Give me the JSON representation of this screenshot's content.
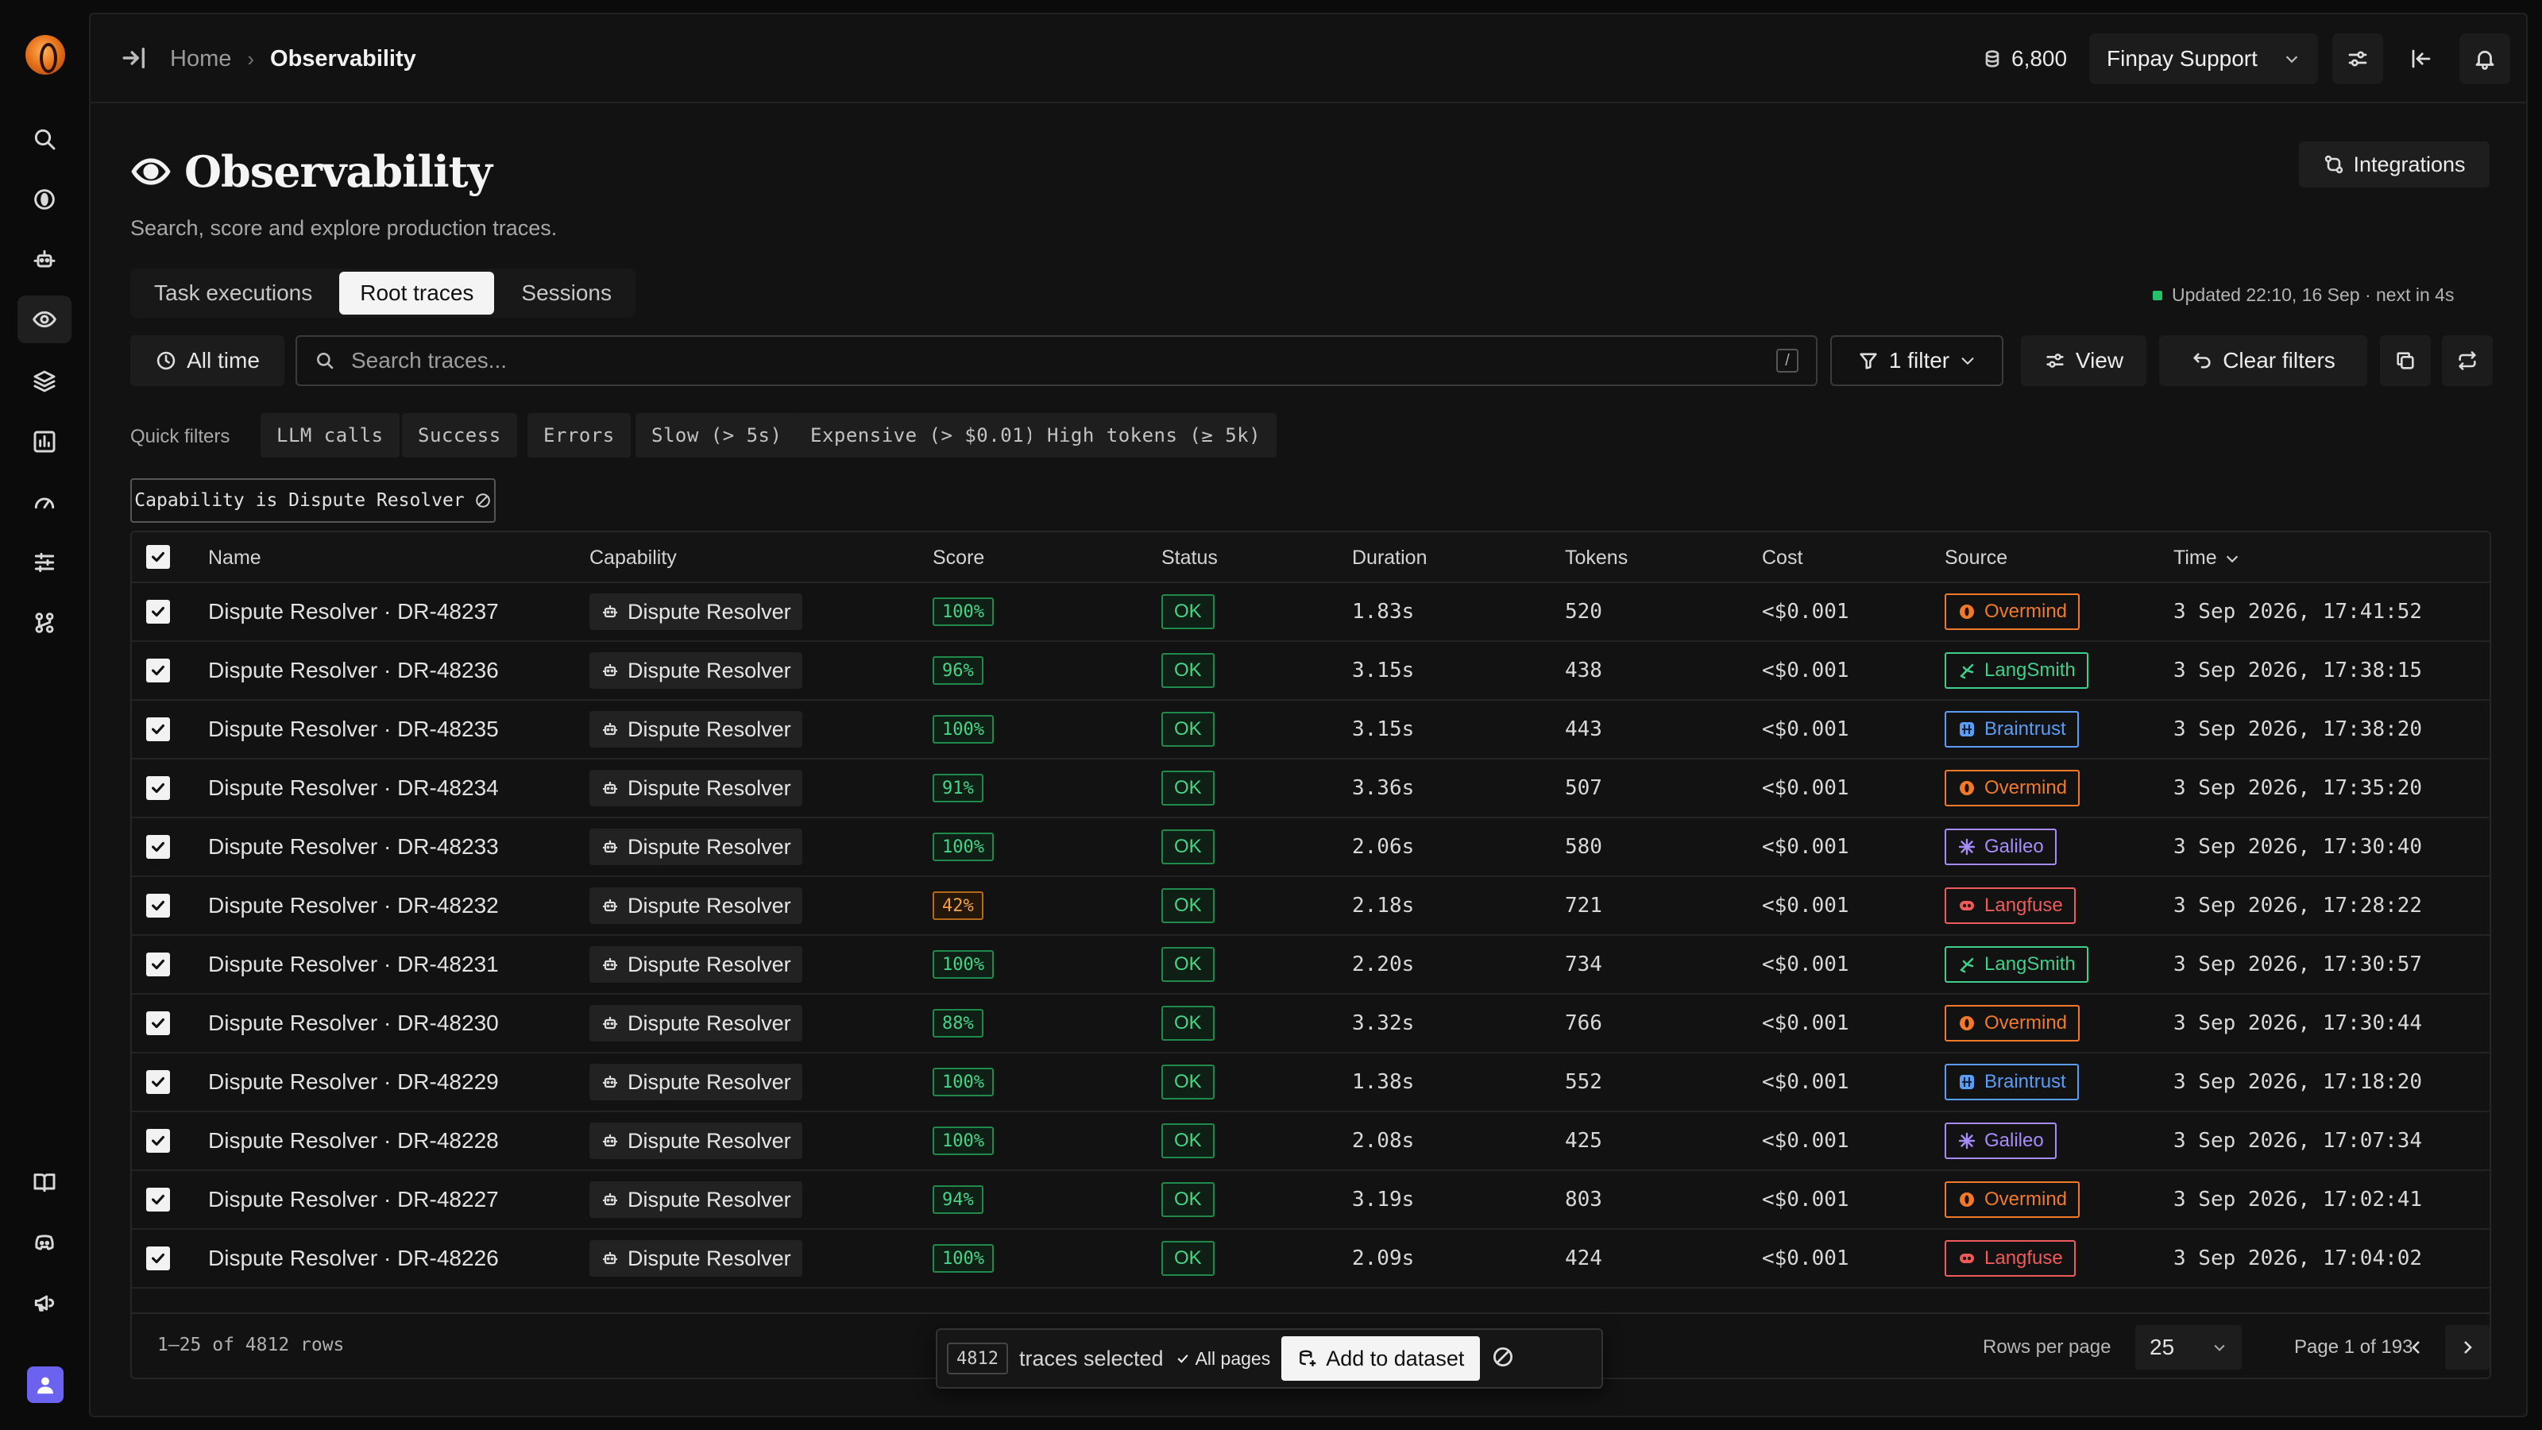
{
  "breadcrumb": {
    "home": "Home",
    "separator": "›",
    "current": "Observability"
  },
  "topbar": {
    "credits": "6,800",
    "org": "Finpay Support"
  },
  "header": {
    "title": "Observability",
    "subtitle": "Search, score and explore production traces.",
    "integrations_label": "Integrations"
  },
  "tabs": [
    {
      "label": "Task executions",
      "active": false
    },
    {
      "label": "Root traces",
      "active": true
    },
    {
      "label": "Sessions",
      "active": false
    }
  ],
  "updated": "Updated  22:10, 16 Sep · next in 4s",
  "filters": {
    "time_label": "All time",
    "search_placeholder": "Search traces...",
    "search_shortcut": "/",
    "filter_label": "1 filter",
    "view_label": "View",
    "clear_label": "Clear filters"
  },
  "quick_filters": {
    "label": "Quick filters",
    "items": [
      "LLM calls",
      "Success",
      "Errors",
      "Slow (> 5s)",
      "Expensive (> $0.01)",
      "High tokens (≥ 5k)"
    ]
  },
  "active_filter": "Capability is Dispute Resolver",
  "table": {
    "columns": [
      "Name",
      "Capability",
      "Score",
      "Status",
      "Duration",
      "Tokens",
      "Cost",
      "Source",
      "Time"
    ],
    "rows": [
      {
        "name": "Dispute Resolver · DR-48237",
        "capability": "Dispute Resolver",
        "score": "100%",
        "status": "OK",
        "duration": "1.83s",
        "tokens": "520",
        "cost": "<$0.001",
        "source": "Overmind",
        "time": "3 Sep 2026, 17:41:52"
      },
      {
        "name": "Dispute Resolver · DR-48236",
        "capability": "Dispute Resolver",
        "score": "96%",
        "status": "OK",
        "duration": "3.15s",
        "tokens": "438",
        "cost": "<$0.001",
        "source": "LangSmith",
        "time": "3 Sep 2026, 17:38:15"
      },
      {
        "name": "Dispute Resolver · DR-48235",
        "capability": "Dispute Resolver",
        "score": "100%",
        "status": "OK",
        "duration": "3.15s",
        "tokens": "443",
        "cost": "<$0.001",
        "source": "Braintrust",
        "time": "3 Sep 2026, 17:38:20"
      },
      {
        "name": "Dispute Resolver · DR-48234",
        "capability": "Dispute Resolver",
        "score": "91%",
        "status": "OK",
        "duration": "3.36s",
        "tokens": "507",
        "cost": "<$0.001",
        "source": "Overmind",
        "time": "3 Sep 2026, 17:35:20"
      },
      {
        "name": "Dispute Resolver · DR-48233",
        "capability": "Dispute Resolver",
        "score": "100%",
        "status": "OK",
        "duration": "2.06s",
        "tokens": "580",
        "cost": "<$0.001",
        "source": "Galileo",
        "time": "3 Sep 2026, 17:30:40"
      },
      {
        "name": "Dispute Resolver · DR-48232",
        "capability": "Dispute Resolver",
        "score": "42%",
        "status": "OK",
        "duration": "2.18s",
        "tokens": "721",
        "cost": "<$0.001",
        "source": "Langfuse",
        "time": "3 Sep 2026, 17:28:22"
      },
      {
        "name": "Dispute Resolver · DR-48231",
        "capability": "Dispute Resolver",
        "score": "100%",
        "status": "OK",
        "duration": "2.20s",
        "tokens": "734",
        "cost": "<$0.001",
        "source": "LangSmith",
        "time": "3 Sep 2026, 17:30:57"
      },
      {
        "name": "Dispute Resolver · DR-48230",
        "capability": "Dispute Resolver",
        "score": "88%",
        "status": "OK",
        "duration": "3.32s",
        "tokens": "766",
        "cost": "<$0.001",
        "source": "Overmind",
        "time": "3 Sep 2026, 17:30:44"
      },
      {
        "name": "Dispute Resolver · DR-48229",
        "capability": "Dispute Resolver",
        "score": "100%",
        "status": "OK",
        "duration": "1.38s",
        "tokens": "552",
        "cost": "<$0.001",
        "source": "Braintrust",
        "time": "3 Sep 2026, 17:18:20"
      },
      {
        "name": "Dispute Resolver · DR-48228",
        "capability": "Dispute Resolver",
        "score": "100%",
        "status": "OK",
        "duration": "2.08s",
        "tokens": "425",
        "cost": "<$0.001",
        "source": "Galileo",
        "time": "3 Sep 2026, 17:07:34"
      },
      {
        "name": "Dispute Resolver · DR-48227",
        "capability": "Dispute Resolver",
        "score": "94%",
        "status": "OK",
        "duration": "3.19s",
        "tokens": "803",
        "cost": "<$0.001",
        "source": "Overmind",
        "time": "3 Sep 2026, 17:02:41"
      },
      {
        "name": "Dispute Resolver · DR-48226",
        "capability": "Dispute Resolver",
        "score": "100%",
        "status": "OK",
        "duration": "2.09s",
        "tokens": "424",
        "cost": "<$0.001",
        "source": "Langfuse",
        "time": "3 Sep 2026, 17:04:02"
      }
    ]
  },
  "footer": {
    "row_count": "1–25 of 4812 rows",
    "rows_per_page_label": "Rows per page",
    "rows_per_page": "25",
    "page_info": "Page 1 of 193"
  },
  "selection": {
    "count": "4812",
    "text": "traces selected",
    "all_pages": "All pages",
    "add_label": "Add to dataset"
  },
  "colors": {
    "accent_green": "#46d587",
    "warn_orange": "#f0a14a",
    "overmind": "#f07a2a",
    "langsmith": "#3fcf8a",
    "braintrust": "#5b9cf5",
    "galileo": "#a78bfa",
    "langfuse": "#ef5a5a"
  }
}
